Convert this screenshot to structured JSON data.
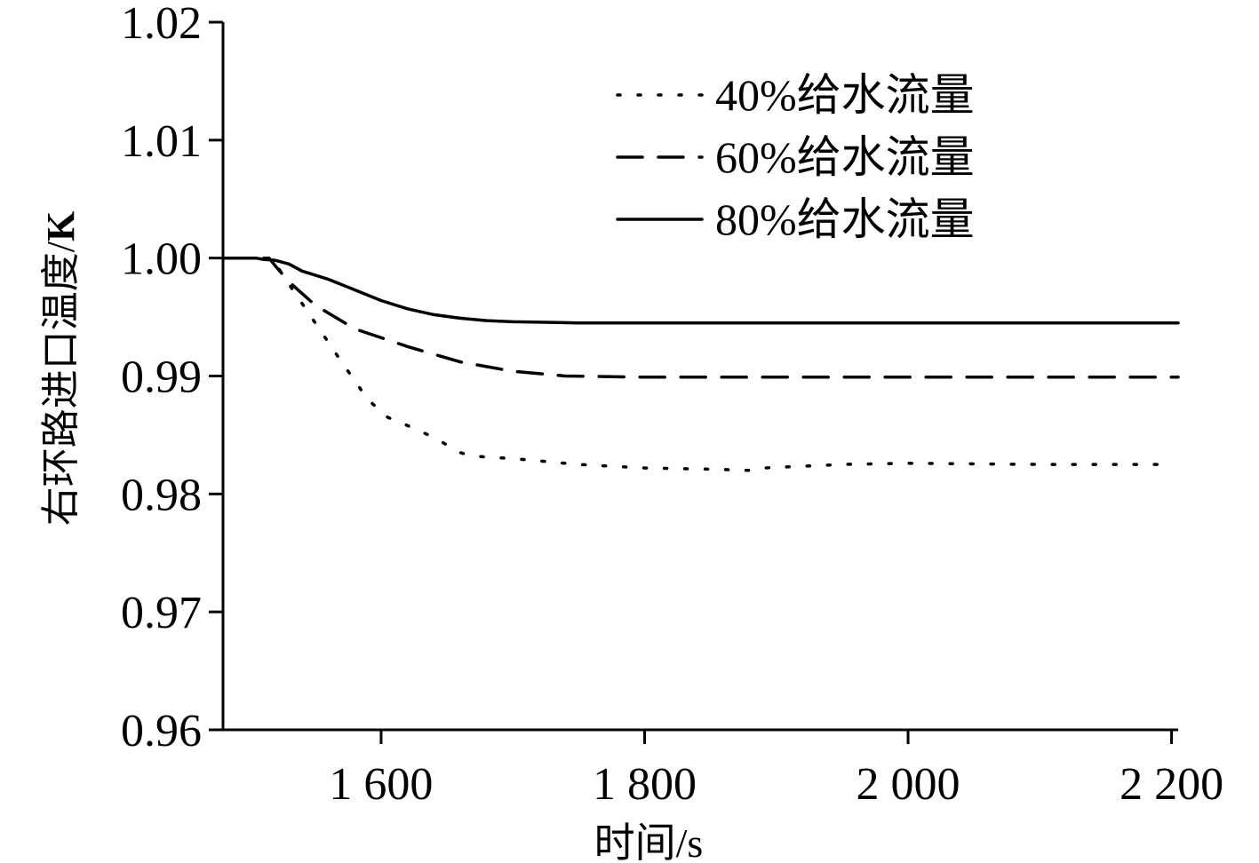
{
  "chart_data": {
    "type": "line",
    "xlabel": "时间/s",
    "ylabel_main": "右环路进口温度/",
    "ylabel_unit": "K",
    "xlim": [
      1480,
      2205
    ],
    "ylim": [
      0.96,
      1.02
    ],
    "x_ticks": [
      1600,
      1800,
      2000,
      2200
    ],
    "x_tick_labels": [
      "1 600",
      "1 800",
      "2 000",
      "2 200"
    ],
    "y_ticks": [
      0.96,
      0.97,
      0.98,
      0.99,
      1.0,
      1.01,
      1.02
    ],
    "y_tick_labels": [
      "0.96",
      "0.97",
      "0.98",
      "0.99",
      "1.00",
      "1.01",
      "1.02"
    ],
    "legend_position": "top-right",
    "series": [
      {
        "name": "40%给水流量",
        "style": "dotted",
        "color": "#000000",
        "x": [
          1480,
          1505,
          1515,
          1520,
          1530,
          1550,
          1570,
          1590,
          1605,
          1620,
          1640,
          1660,
          1670,
          1700,
          1750,
          1800,
          1850,
          1880,
          1890,
          1950,
          2000,
          2100,
          2200
        ],
        "y": [
          1.0,
          1.0,
          1.0,
          0.9995,
          0.9978,
          0.9945,
          0.9912,
          0.988,
          0.9865,
          0.9858,
          0.9848,
          0.9835,
          0.9832,
          0.983,
          0.9825,
          0.9822,
          0.9821,
          0.982,
          0.9822,
          0.9825,
          0.9826,
          0.9825,
          0.9825
        ]
      },
      {
        "name": "60%给水流量",
        "style": "dashed",
        "color": "#000000",
        "x": [
          1480,
          1505,
          1515,
          1520,
          1530,
          1550,
          1580,
          1620,
          1660,
          1700,
          1740,
          1800,
          1900,
          2000,
          2100,
          2205
        ],
        "y": [
          1.0,
          1.0,
          1.0,
          0.9993,
          0.998,
          0.996,
          0.994,
          0.9925,
          0.9912,
          0.9904,
          0.99,
          0.9899,
          0.9899,
          0.9899,
          0.9899,
          0.9899
        ]
      },
      {
        "name": "80%给水流量",
        "style": "solid",
        "color": "#000000",
        "x": [
          1480,
          1500,
          1505,
          1510,
          1520,
          1530,
          1540,
          1560,
          1580,
          1600,
          1620,
          1640,
          1660,
          1680,
          1700,
          1750,
          1800,
          1900,
          2000,
          2100,
          2205
        ],
        "y": [
          1.0,
          1.0,
          1.0,
          0.9999,
          0.9998,
          0.9995,
          0.9989,
          0.9982,
          0.9973,
          0.9964,
          0.9957,
          0.9952,
          0.9949,
          0.9947,
          0.9946,
          0.9945,
          0.9945,
          0.9945,
          0.9945,
          0.9945,
          0.9945
        ]
      }
    ]
  }
}
